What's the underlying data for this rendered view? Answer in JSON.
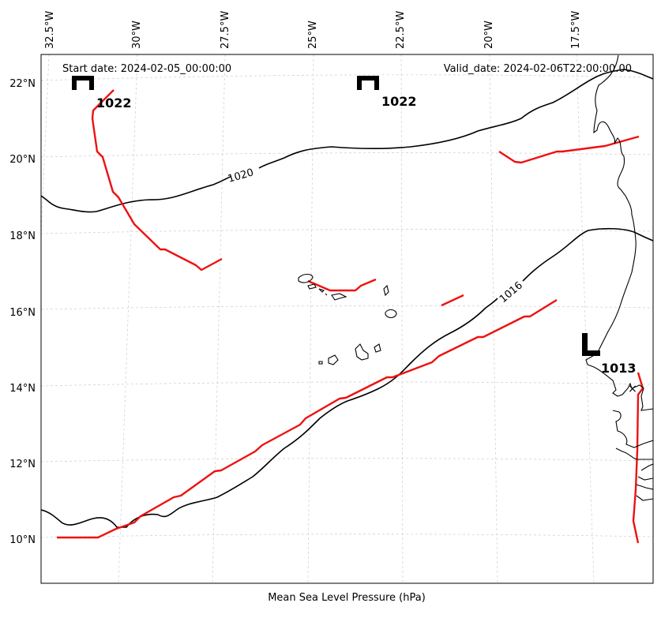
{
  "header": {
    "start_label": "Start date: 2024-02-05_00:00:00",
    "valid_label": "Valid_date: 2024-02-06T22:00:00.00"
  },
  "footer": {
    "title": "Mean Sea Level Pressure (hPa)"
  },
  "axes": {
    "longitude_ticks": [
      "32.5°W",
      "30°W",
      "27.5°W",
      "25°W",
      "22.5°W",
      "20°W",
      "17.5°W"
    ],
    "latitude_ticks": [
      "22°N",
      "20°N",
      "18°N",
      "16°N",
      "14°N",
      "12°N",
      "10°N"
    ]
  },
  "pressure_systems": [
    {
      "kind": "high",
      "symbol": "H",
      "value": "1022"
    },
    {
      "kind": "high",
      "symbol": "H",
      "value": "1022"
    },
    {
      "kind": "low",
      "symbol": "L",
      "value": "1013"
    }
  ],
  "isobars": [
    {
      "value": 1020,
      "label": "1020"
    },
    {
      "value": 1016,
      "label": "1016"
    }
  ],
  "markers": {
    "station_symbol": "×"
  },
  "colors": {
    "front": "#ee1111",
    "isobar": "#000000",
    "grid": "#cccccc",
    "coast": "#000000"
  }
}
